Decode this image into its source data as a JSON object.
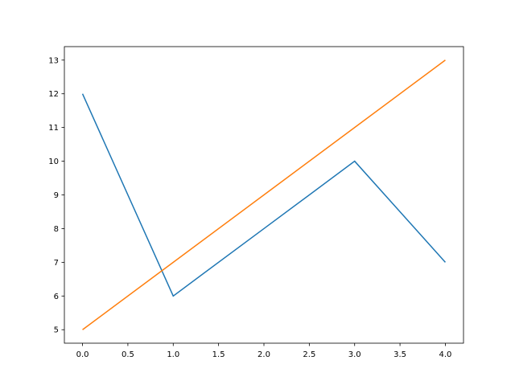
{
  "chart_data": {
    "type": "line",
    "title": "",
    "xlabel": "",
    "ylabel": "",
    "xlim": [
      -0.2,
      4.2
    ],
    "ylim": [
      4.6,
      13.4
    ],
    "grid": false,
    "x": [
      0,
      1,
      2,
      3,
      4
    ],
    "xticks": [
      "0.0",
      "0.5",
      "1.0",
      "1.5",
      "2.0",
      "2.5",
      "3.0",
      "3.5",
      "4.0"
    ],
    "yticks": [
      "5",
      "6",
      "7",
      "8",
      "9",
      "10",
      "11",
      "12",
      "13"
    ],
    "series": [
      {
        "values": [
          12,
          6,
          8,
          10,
          7
        ],
        "color": "#1f77b4"
      },
      {
        "values": [
          5,
          7,
          9,
          11,
          13
        ],
        "color": "#ff7f0e"
      }
    ]
  }
}
